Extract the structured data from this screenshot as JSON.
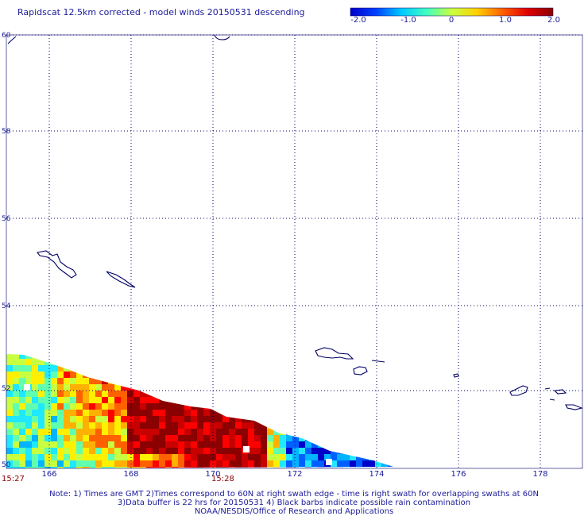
{
  "title": "Rapidscat 12.5km corrected - model winds 20150531 descending",
  "colorbar": {
    "labels": [
      "-2.0",
      "-1.0",
      "0",
      "1.0",
      "2.0"
    ],
    "colors": [
      "#0000c8",
      "#0040ff",
      "#00c8ff",
      "#40ffc0",
      "#c8ff40",
      "#ffd000",
      "#ff6000",
      "#e00000",
      "#8b0000"
    ]
  },
  "map": {
    "lon_labels": [
      "166",
      "168",
      "170",
      "172",
      "174",
      "176",
      "178"
    ],
    "lat_labels": [
      "60",
      "58",
      "56",
      "54",
      "52",
      "50"
    ],
    "grid": true,
    "coastline_color": "#000066",
    "grid_color": "#000066"
  },
  "time_labels": [
    "15:27",
    "15:28"
  ],
  "notes": [
    "Note: 1) Times are GMT 2)Times correspond to 60N at right swath edge - time is right swath for overlapping swaths at 60N",
    "3)Data buffer is 22 hrs for 20150531 4) Black barbs indicate possible rain contamination",
    "NOAA/NESDIS/Office of Research and Applications"
  ]
}
